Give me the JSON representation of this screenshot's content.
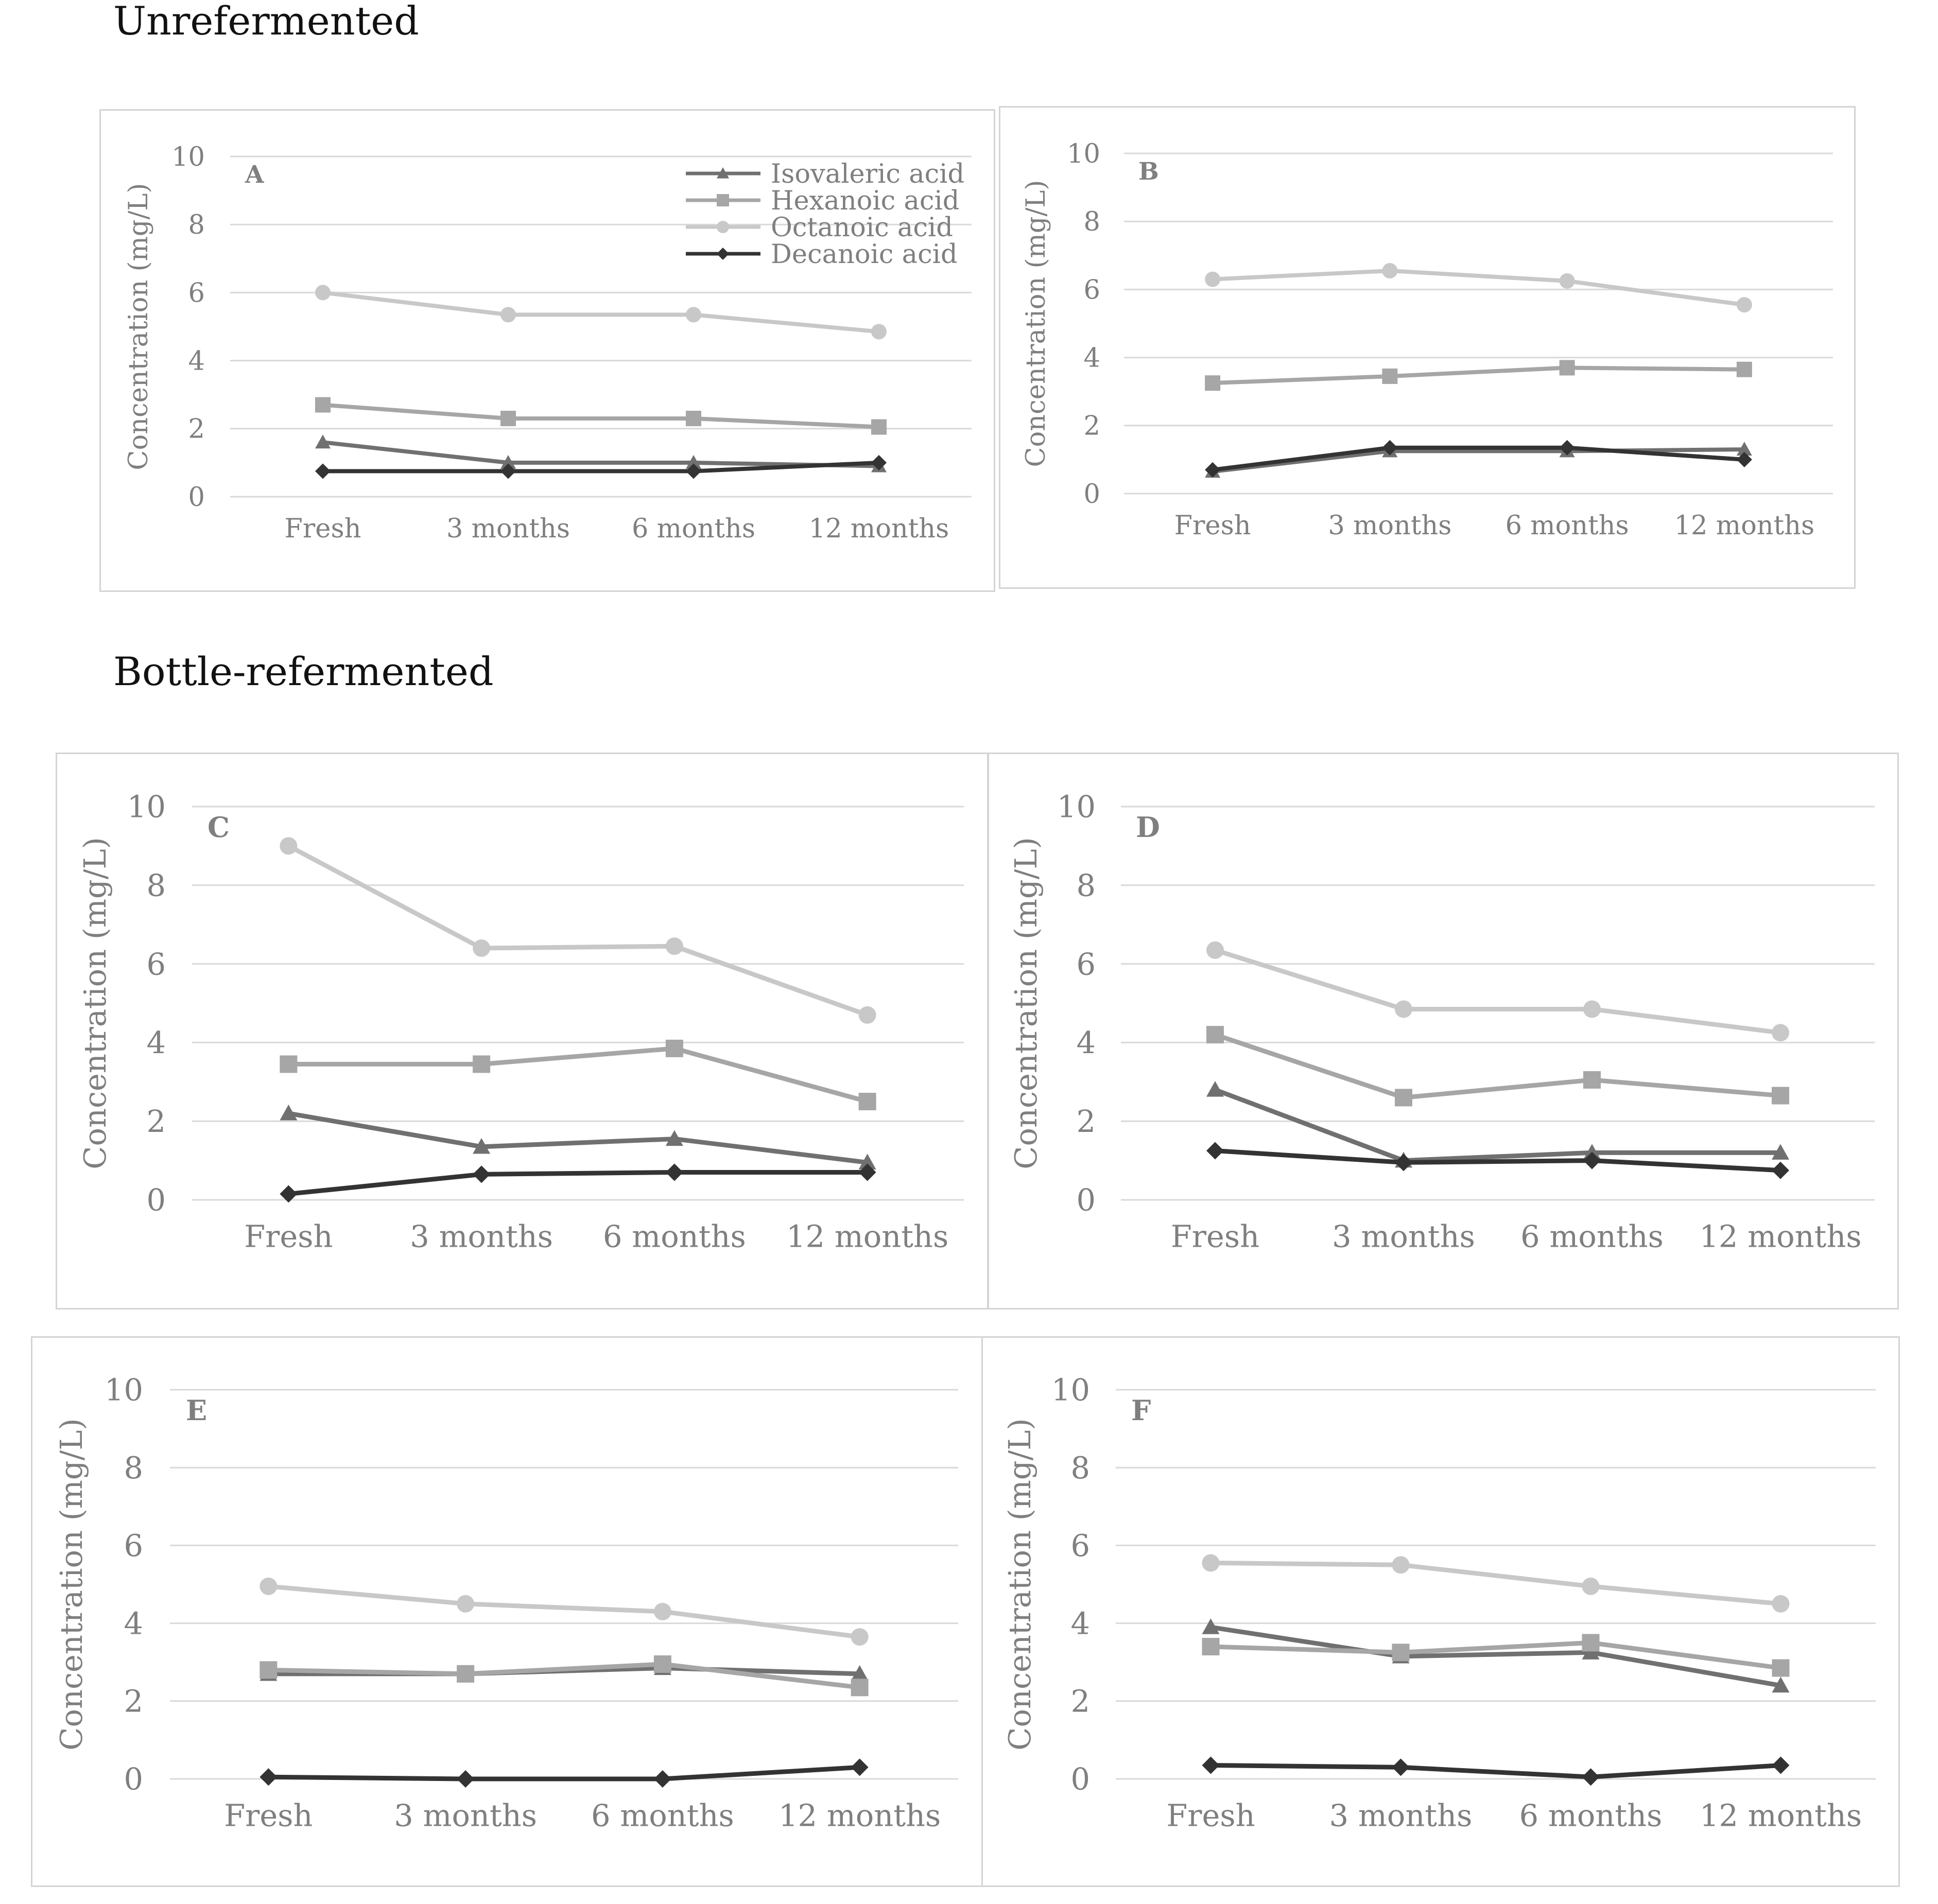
{
  "sections": {
    "unrefermented": "Unrefermented",
    "bottle": "Bottle-refermented"
  },
  "legend": [
    {
      "name": "Isovaleric acid",
      "color": "#707070",
      "marker": "triangle"
    },
    {
      "name": "Hexanoic acid",
      "color": "#a6a6a6",
      "marker": "square"
    },
    {
      "name": "Octanoic acid",
      "color": "#c8c8c8",
      "marker": "circle"
    },
    {
      "name": "Decanoic acid",
      "color": "#333333",
      "marker": "diamond"
    }
  ],
  "chart_data": [
    {
      "type": "line",
      "label": "A",
      "categories": [
        "Fresh",
        "3 months",
        "6 months",
        "12 months"
      ],
      "ylabel": "Concentration (mg/L)",
      "ylim": [
        0,
        10
      ],
      "yticks": [
        0,
        2,
        4,
        6,
        8,
        10
      ],
      "grid": true,
      "legend": "top-right",
      "series": [
        {
          "name": "Isovaleric acid",
          "values": [
            1.6,
            1.0,
            1.0,
            0.9
          ]
        },
        {
          "name": "Hexanoic acid",
          "values": [
            2.7,
            2.3,
            2.3,
            2.05
          ]
        },
        {
          "name": "Octanoic acid",
          "values": [
            6.0,
            5.35,
            5.35,
            4.85
          ]
        },
        {
          "name": "Decanoic acid",
          "values": [
            0.75,
            0.75,
            0.75,
            1.0
          ]
        }
      ]
    },
    {
      "type": "line",
      "label": "B",
      "categories": [
        "Fresh",
        "3 months",
        "6 months",
        "12 months"
      ],
      "ylabel": "Concentration (mg/L)",
      "ylim": [
        0,
        10
      ],
      "yticks": [
        0,
        2,
        4,
        6,
        8,
        10
      ],
      "grid": true,
      "series": [
        {
          "name": "Isovaleric acid",
          "values": [
            0.65,
            1.25,
            1.25,
            1.3
          ]
        },
        {
          "name": "Hexanoic acid",
          "values": [
            3.25,
            3.45,
            3.7,
            3.65
          ]
        },
        {
          "name": "Octanoic acid",
          "values": [
            6.3,
            6.55,
            6.25,
            5.55
          ]
        },
        {
          "name": "Decanoic acid",
          "values": [
            0.7,
            1.35,
            1.35,
            1.0
          ]
        }
      ]
    },
    {
      "type": "line",
      "label": "C",
      "categories": [
        "Fresh",
        "3 months",
        "6 months",
        "12 months"
      ],
      "ylabel": "Concentration (mg/L)",
      "ylim": [
        0,
        10
      ],
      "yticks": [
        0,
        2,
        4,
        6,
        8,
        10
      ],
      "grid": true,
      "series": [
        {
          "name": "Isovaleric acid",
          "values": [
            2.2,
            1.35,
            1.55,
            0.95
          ]
        },
        {
          "name": "Hexanoic acid",
          "values": [
            3.45,
            3.45,
            3.85,
            2.5
          ]
        },
        {
          "name": "Octanoic acid",
          "values": [
            9.0,
            6.4,
            6.45,
            4.7
          ]
        },
        {
          "name": "Decanoic acid",
          "values": [
            0.15,
            0.65,
            0.7,
            0.7
          ]
        }
      ]
    },
    {
      "type": "line",
      "label": "D",
      "categories": [
        "Fresh",
        "3 months",
        "6 months",
        "12 months"
      ],
      "ylabel": "Concentration (mg/L)",
      "ylim": [
        0,
        10
      ],
      "yticks": [
        0,
        2,
        4,
        6,
        8,
        10
      ],
      "grid": true,
      "series": [
        {
          "name": "Isovaleric acid",
          "values": [
            2.8,
            1.0,
            1.2,
            1.2
          ]
        },
        {
          "name": "Hexanoic acid",
          "values": [
            4.2,
            2.6,
            3.05,
            2.65
          ]
        },
        {
          "name": "Octanoic acid",
          "values": [
            6.35,
            4.85,
            4.85,
            4.25
          ]
        },
        {
          "name": "Decanoic acid",
          "values": [
            1.25,
            0.95,
            1.0,
            0.75
          ]
        }
      ]
    },
    {
      "type": "line",
      "label": "E",
      "categories": [
        "Fresh",
        "3 months",
        "6 months",
        "12 months"
      ],
      "ylabel": "Concentration (mg/L)",
      "ylim": [
        0,
        10
      ],
      "yticks": [
        0,
        2,
        4,
        6,
        8,
        10
      ],
      "grid": true,
      "series": [
        {
          "name": "Isovaleric acid",
          "values": [
            2.7,
            2.7,
            2.85,
            2.7
          ]
        },
        {
          "name": "Hexanoic acid",
          "values": [
            2.8,
            2.7,
            2.95,
            2.35
          ]
        },
        {
          "name": "Octanoic acid",
          "values": [
            4.95,
            4.5,
            4.3,
            3.65
          ]
        },
        {
          "name": "Decanoic acid",
          "values": [
            0.05,
            0.0,
            0.0,
            0.3
          ]
        }
      ]
    },
    {
      "type": "line",
      "label": "F",
      "categories": [
        "Fresh",
        "3 months",
        "6 months",
        "12 months"
      ],
      "ylabel": "Concentration (mg/L)",
      "ylim": [
        0,
        10
      ],
      "yticks": [
        0,
        2,
        4,
        6,
        8,
        10
      ],
      "grid": true,
      "series": [
        {
          "name": "Isovaleric acid",
          "values": [
            3.9,
            3.15,
            3.25,
            2.4
          ]
        },
        {
          "name": "Hexanoic acid",
          "values": [
            3.4,
            3.25,
            3.5,
            2.85
          ]
        },
        {
          "name": "Octanoic acid",
          "values": [
            5.55,
            5.5,
            4.95,
            4.5
          ]
        },
        {
          "name": "Decanoic acid",
          "values": [
            0.35,
            0.3,
            0.05,
            0.35
          ]
        }
      ]
    }
  ]
}
